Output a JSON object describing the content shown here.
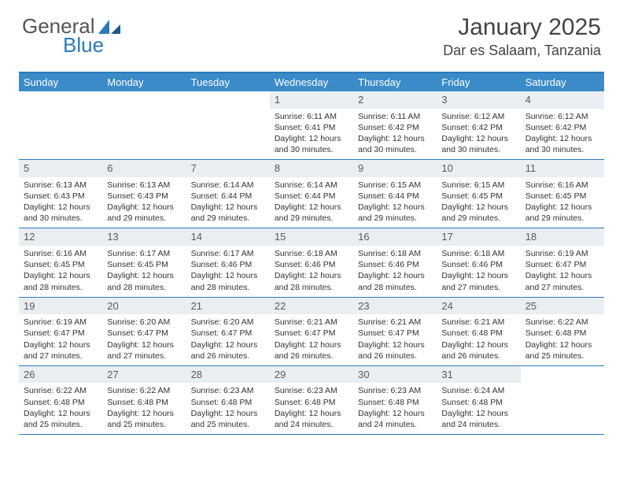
{
  "logo": {
    "text1": "General",
    "text2": "Blue",
    "color_gray": "#6a6a6a",
    "color_blue": "#2a7ab9"
  },
  "header": {
    "month_title": "January 2025",
    "location": "Dar es Salaam, Tanzania"
  },
  "colors": {
    "header_bar": "#3b8bc9",
    "border": "#2a7ab9",
    "daynum_bg": "#e9eef2",
    "text": "#333333",
    "white": "#ffffff"
  },
  "weekdays": [
    "Sunday",
    "Monday",
    "Tuesday",
    "Wednesday",
    "Thursday",
    "Friday",
    "Saturday"
  ],
  "fonts": {
    "month_title_size": 30,
    "location_size": 18,
    "weekday_size": 13,
    "daynum_size": 13,
    "body_size": 10.5
  },
  "weeks": [
    [
      {
        "n": "",
        "lines": []
      },
      {
        "n": "",
        "lines": []
      },
      {
        "n": "",
        "lines": []
      },
      {
        "n": "1",
        "lines": [
          "Sunrise: 6:11 AM",
          "Sunset: 6:41 PM",
          "Daylight: 12 hours and 30 minutes."
        ]
      },
      {
        "n": "2",
        "lines": [
          "Sunrise: 6:11 AM",
          "Sunset: 6:42 PM",
          "Daylight: 12 hours and 30 minutes."
        ]
      },
      {
        "n": "3",
        "lines": [
          "Sunrise: 6:12 AM",
          "Sunset: 6:42 PM",
          "Daylight: 12 hours and 30 minutes."
        ]
      },
      {
        "n": "4",
        "lines": [
          "Sunrise: 6:12 AM",
          "Sunset: 6:42 PM",
          "Daylight: 12 hours and 30 minutes."
        ]
      }
    ],
    [
      {
        "n": "5",
        "lines": [
          "Sunrise: 6:13 AM",
          "Sunset: 6:43 PM",
          "Daylight: 12 hours and 30 minutes."
        ]
      },
      {
        "n": "6",
        "lines": [
          "Sunrise: 6:13 AM",
          "Sunset: 6:43 PM",
          "Daylight: 12 hours and 29 minutes."
        ]
      },
      {
        "n": "7",
        "lines": [
          "Sunrise: 6:14 AM",
          "Sunset: 6:44 PM",
          "Daylight: 12 hours and 29 minutes."
        ]
      },
      {
        "n": "8",
        "lines": [
          "Sunrise: 6:14 AM",
          "Sunset: 6:44 PM",
          "Daylight: 12 hours and 29 minutes."
        ]
      },
      {
        "n": "9",
        "lines": [
          "Sunrise: 6:15 AM",
          "Sunset: 6:44 PM",
          "Daylight: 12 hours and 29 minutes."
        ]
      },
      {
        "n": "10",
        "lines": [
          "Sunrise: 6:15 AM",
          "Sunset: 6:45 PM",
          "Daylight: 12 hours and 29 minutes."
        ]
      },
      {
        "n": "11",
        "lines": [
          "Sunrise: 6:16 AM",
          "Sunset: 6:45 PM",
          "Daylight: 12 hours and 29 minutes."
        ]
      }
    ],
    [
      {
        "n": "12",
        "lines": [
          "Sunrise: 6:16 AM",
          "Sunset: 6:45 PM",
          "Daylight: 12 hours and 28 minutes."
        ]
      },
      {
        "n": "13",
        "lines": [
          "Sunrise: 6:17 AM",
          "Sunset: 6:45 PM",
          "Daylight: 12 hours and 28 minutes."
        ]
      },
      {
        "n": "14",
        "lines": [
          "Sunrise: 6:17 AM",
          "Sunset: 6:46 PM",
          "Daylight: 12 hours and 28 minutes."
        ]
      },
      {
        "n": "15",
        "lines": [
          "Sunrise: 6:18 AM",
          "Sunset: 6:46 PM",
          "Daylight: 12 hours and 28 minutes."
        ]
      },
      {
        "n": "16",
        "lines": [
          "Sunrise: 6:18 AM",
          "Sunset: 6:46 PM",
          "Daylight: 12 hours and 28 minutes."
        ]
      },
      {
        "n": "17",
        "lines": [
          "Sunrise: 6:18 AM",
          "Sunset: 6:46 PM",
          "Daylight: 12 hours and 27 minutes."
        ]
      },
      {
        "n": "18",
        "lines": [
          "Sunrise: 6:19 AM",
          "Sunset: 6:47 PM",
          "Daylight: 12 hours and 27 minutes."
        ]
      }
    ],
    [
      {
        "n": "19",
        "lines": [
          "Sunrise: 6:19 AM",
          "Sunset: 6:47 PM",
          "Daylight: 12 hours and 27 minutes."
        ]
      },
      {
        "n": "20",
        "lines": [
          "Sunrise: 6:20 AM",
          "Sunset: 6:47 PM",
          "Daylight: 12 hours and 27 minutes."
        ]
      },
      {
        "n": "21",
        "lines": [
          "Sunrise: 6:20 AM",
          "Sunset: 6:47 PM",
          "Daylight: 12 hours and 26 minutes."
        ]
      },
      {
        "n": "22",
        "lines": [
          "Sunrise: 6:21 AM",
          "Sunset: 6:47 PM",
          "Daylight: 12 hours and 26 minutes."
        ]
      },
      {
        "n": "23",
        "lines": [
          "Sunrise: 6:21 AM",
          "Sunset: 6:47 PM",
          "Daylight: 12 hours and 26 minutes."
        ]
      },
      {
        "n": "24",
        "lines": [
          "Sunrise: 6:21 AM",
          "Sunset: 6:48 PM",
          "Daylight: 12 hours and 26 minutes."
        ]
      },
      {
        "n": "25",
        "lines": [
          "Sunrise: 6:22 AM",
          "Sunset: 6:48 PM",
          "Daylight: 12 hours and 25 minutes."
        ]
      }
    ],
    [
      {
        "n": "26",
        "lines": [
          "Sunrise: 6:22 AM",
          "Sunset: 6:48 PM",
          "Daylight: 12 hours and 25 minutes."
        ]
      },
      {
        "n": "27",
        "lines": [
          "Sunrise: 6:22 AM",
          "Sunset: 6:48 PM",
          "Daylight: 12 hours and 25 minutes."
        ]
      },
      {
        "n": "28",
        "lines": [
          "Sunrise: 6:23 AM",
          "Sunset: 6:48 PM",
          "Daylight: 12 hours and 25 minutes."
        ]
      },
      {
        "n": "29",
        "lines": [
          "Sunrise: 6:23 AM",
          "Sunset: 6:48 PM",
          "Daylight: 12 hours and 24 minutes."
        ]
      },
      {
        "n": "30",
        "lines": [
          "Sunrise: 6:23 AM",
          "Sunset: 6:48 PM",
          "Daylight: 12 hours and 24 minutes."
        ]
      },
      {
        "n": "31",
        "lines": [
          "Sunrise: 6:24 AM",
          "Sunset: 6:48 PM",
          "Daylight: 12 hours and 24 minutes."
        ]
      },
      {
        "n": "",
        "lines": []
      }
    ]
  ]
}
